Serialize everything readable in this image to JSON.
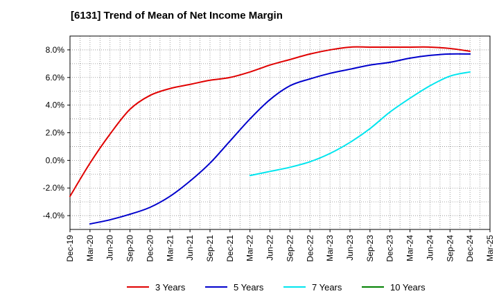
{
  "chart_data": {
    "type": "line",
    "title": "[6131]  Trend of Mean of Net Income Margin",
    "xlabel": "",
    "ylabel": "",
    "ylim": [
      -5.0,
      9.0
    ],
    "y_ticks": [
      8.0,
      6.0,
      4.0,
      2.0,
      0.0,
      -2.0,
      -4.0
    ],
    "y_tick_labels": [
      "8.0%",
      "6.0%",
      "4.0%",
      "2.0%",
      "0.0%",
      "-2.0%",
      "-4.0%"
    ],
    "x_tick_labels": [
      "Dec-19",
      "Mar-20",
      "Jun-20",
      "Sep-20",
      "Dec-20",
      "Mar-21",
      "Jun-21",
      "Sep-21",
      "Dec-21",
      "Mar-22",
      "Jun-22",
      "Sep-22",
      "Dec-22",
      "Mar-23",
      "Jun-23",
      "Sep-23",
      "Dec-23",
      "Mar-24",
      "Jun-24",
      "Sep-24",
      "Dec-24",
      "Mar-25"
    ],
    "grid": true,
    "legend_position": "bottom",
    "series": [
      {
        "name": "3 Years",
        "color": "#e00000",
        "x": [
          "Dec-19",
          "Mar-20",
          "Jun-20",
          "Sep-20",
          "Dec-20",
          "Mar-21",
          "Jun-21",
          "Sep-21",
          "Dec-21",
          "Mar-22",
          "Jun-22",
          "Sep-22",
          "Dec-22",
          "Mar-23",
          "Jun-23",
          "Sep-23",
          "Dec-23",
          "Mar-24",
          "Jun-24",
          "Sep-24",
          "Dec-24"
        ],
        "values": [
          -2.6,
          -0.2,
          1.9,
          3.7,
          4.7,
          5.2,
          5.5,
          5.8,
          6.0,
          6.4,
          6.9,
          7.3,
          7.7,
          8.0,
          8.2,
          8.2,
          8.2,
          8.2,
          8.2,
          8.1,
          7.9
        ]
      },
      {
        "name": "5 Years",
        "color": "#0000cc",
        "x": [
          "Mar-20",
          "Jun-20",
          "Sep-20",
          "Dec-20",
          "Mar-21",
          "Jun-21",
          "Sep-21",
          "Dec-21",
          "Mar-22",
          "Jun-22",
          "Sep-22",
          "Dec-22",
          "Mar-23",
          "Jun-23",
          "Sep-23",
          "Dec-23",
          "Mar-24",
          "Jun-24",
          "Sep-24",
          "Dec-24"
        ],
        "values": [
          -4.6,
          -4.3,
          -3.9,
          -3.4,
          -2.6,
          -1.5,
          -0.2,
          1.4,
          3.0,
          4.4,
          5.4,
          5.9,
          6.3,
          6.6,
          6.9,
          7.1,
          7.4,
          7.6,
          7.7,
          7.7
        ]
      },
      {
        "name": "7 Years",
        "color": "#00e5ee",
        "x": [
          "Mar-22",
          "Jun-22",
          "Sep-22",
          "Dec-22",
          "Mar-23",
          "Jun-23",
          "Sep-23",
          "Dec-23",
          "Mar-24",
          "Jun-24",
          "Sep-24",
          "Dec-24"
        ],
        "values": [
          -1.1,
          -0.8,
          -0.5,
          -0.1,
          0.5,
          1.3,
          2.3,
          3.5,
          4.5,
          5.4,
          6.1,
          6.4
        ]
      },
      {
        "name": "10 Years",
        "color": "#008000",
        "x": [],
        "values": []
      }
    ]
  }
}
